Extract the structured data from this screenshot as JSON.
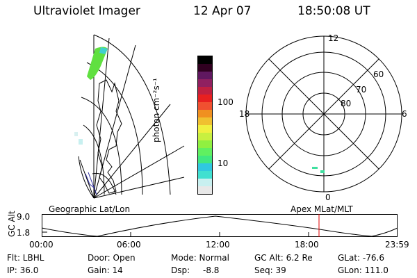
{
  "header": {
    "instrument": "Ultraviolet Imager",
    "date": "12 Apr 07",
    "time": "18:50:08 UT"
  },
  "colorbar": {
    "unit_label": "photon cm⁻²s⁻¹",
    "tick_labels": [
      "100",
      "10"
    ],
    "colors": [
      "#e8e8e8",
      "#c8f0f0",
      "#40e0d0",
      "#30c8e0",
      "#40e880",
      "#60f060",
      "#90f040",
      "#c8f040",
      "#f0f040",
      "#f0c030",
      "#f09020",
      "#f05030",
      "#e82020",
      "#c02040",
      "#902060",
      "#601860",
      "#300020",
      "#000000"
    ]
  },
  "geo_panel": {
    "label": "Geographic Lat/Lon"
  },
  "polar_panel": {
    "label": "Apex MLat/MLT",
    "mlt_labels": {
      "top": "12",
      "left": "18",
      "right": "6",
      "bottom": "0"
    },
    "lat_labels": [
      "60",
      "70",
      "80"
    ]
  },
  "altitude_plot": {
    "ylabel": "GC Alt",
    "ytick_top": "9.0",
    "ytick_bottom": "1.8",
    "xticks": [
      "00:00",
      "06:00",
      "12:00",
      "18:00",
      "23:59"
    ],
    "marker_color": "#e00000"
  },
  "status": {
    "flt": "Flt: LBHL",
    "ip": "IP: 36.0",
    "door": "Door: Open",
    "gain": "Gain: 14",
    "mode": "Mode: Normal",
    "dsp": "Dsp:",
    "dsp_value": "-8.8",
    "gc_alt": "GC Alt: 6.2 Re",
    "seq": "Seq: 39",
    "glat": "GLat: -76.6",
    "glon": "GLon: 111.0"
  }
}
